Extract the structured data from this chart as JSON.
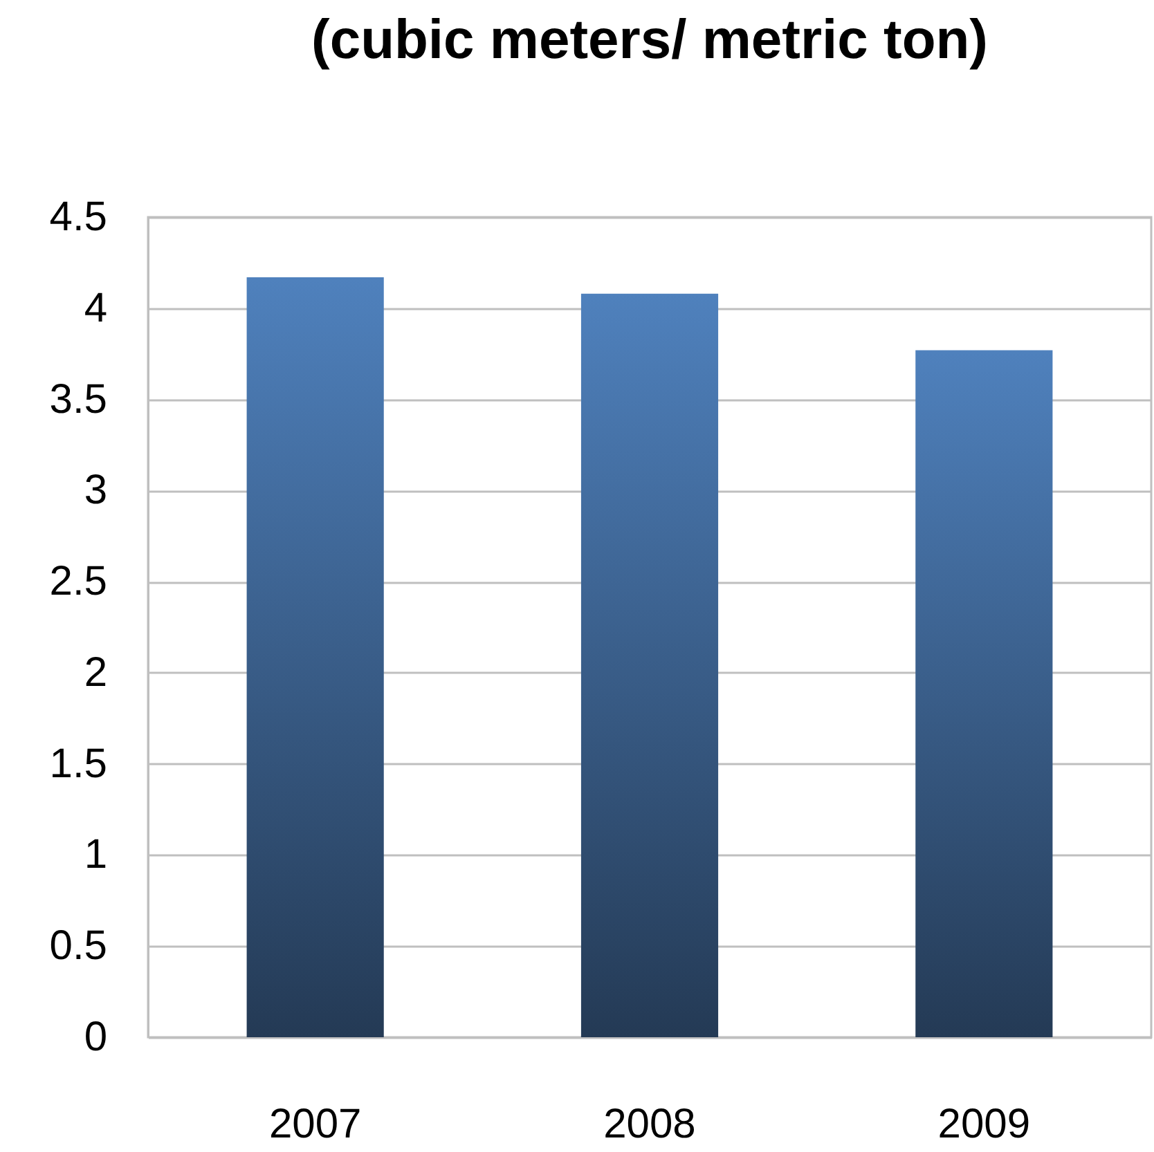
{
  "chart_data": {
    "type": "bar",
    "title": "(cubic meters/ metric ton)",
    "categories": [
      "2007",
      "2008",
      "2009"
    ],
    "values": [
      4.17,
      4.08,
      3.77
    ],
    "color": "#4f81bd",
    "ylim": [
      0,
      4.5
    ],
    "yticks": [
      0,
      0.5,
      1,
      1.5,
      2,
      2.5,
      3,
      3.5,
      4,
      4.5
    ],
    "grid": "y"
  }
}
